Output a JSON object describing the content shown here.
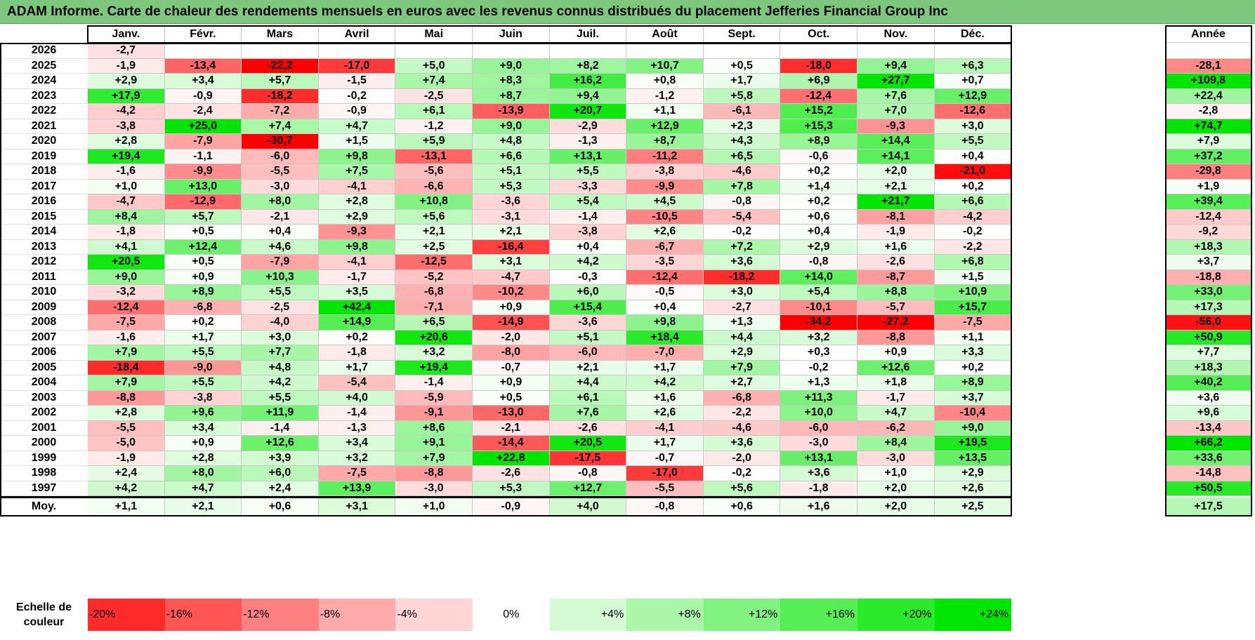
{
  "title": "ADAM Informe. Carte de chaleur des rendements mensuels en euros avec les revenus connus distribués du placement Jefferies Financial Group Inc",
  "chart_data": {
    "type": "heatmap",
    "title": "ADAM Informe. Carte de chaleur des rendements mensuels en euros avec les revenus connus distribués du placement Jefferies Financial Group Inc",
    "columns": [
      "Janv.",
      "Févr.",
      "Mars",
      "Avril",
      "Mai",
      "Juin",
      "Juil.",
      "Août",
      "Sept.",
      "Oct.",
      "Nov.",
      "Déc."
    ],
    "year_header": "Année",
    "rows": [
      {
        "year": "2026",
        "values": [
          "-2,7",
          "",
          "",
          "",
          "",
          "",
          "",
          "",
          "",
          "",
          "",
          ""
        ],
        "annual": ""
      },
      {
        "year": "2025",
        "values": [
          "-1,9",
          "-13,4",
          "-22,2",
          "-17,0",
          "+5,0",
          "+9,0",
          "+8,2",
          "+10,7",
          "+0,5",
          "-18,0",
          "+9,4",
          "+6,3"
        ],
        "annual": "-28,1"
      },
      {
        "year": "2024",
        "values": [
          "+2,9",
          "+3,4",
          "+5,7",
          "-1,5",
          "+7,4",
          "+8,3",
          "+16,2",
          "+0,8",
          "+1,7",
          "+6,9",
          "+27,7",
          "+0,7"
        ],
        "annual": "+109,8"
      },
      {
        "year": "2023",
        "values": [
          "+17,9",
          "-0,9",
          "-18,2",
          "-0,2",
          "-2,5",
          "+8,7",
          "+9,4",
          "-1,2",
          "+5,8",
          "-12,4",
          "+7,6",
          "+12,9"
        ],
        "annual": "+22,4"
      },
      {
        "year": "2022",
        "values": [
          "-4,2",
          "-2,4",
          "-7,2",
          "-0,9",
          "+6,1",
          "-13,9",
          "+20,7",
          "+1,1",
          "-6,1",
          "+15,2",
          "+7,0",
          "-12,6"
        ],
        "annual": "-2,8"
      },
      {
        "year": "2021",
        "values": [
          "-3,8",
          "+25,0",
          "+7,4",
          "+4,7",
          "-1,2",
          "+9,0",
          "-2,9",
          "+12,9",
          "+2,3",
          "+15,3",
          "-9,3",
          "+3,0"
        ],
        "annual": "+74,7"
      },
      {
        "year": "2020",
        "values": [
          "+2,8",
          "-7,9",
          "-30,7",
          "+1,5",
          "+5,9",
          "+4,8",
          "-1,3",
          "+8,7",
          "+4,3",
          "+8,9",
          "+14,4",
          "+5,5"
        ],
        "annual": "+7,9"
      },
      {
        "year": "2019",
        "values": [
          "+19,4",
          "-1,1",
          "-6,0",
          "+9,8",
          "-13,1",
          "+6,6",
          "+13,1",
          "-11,2",
          "+6,5",
          "-0,6",
          "+14,1",
          "+0,4"
        ],
        "annual": "+37,2"
      },
      {
        "year": "2018",
        "values": [
          "-1,6",
          "-9,9",
          "-5,5",
          "+7,5",
          "-5,6",
          "+5,1",
          "+5,5",
          "-3,8",
          "-4,6",
          "+0,2",
          "+2,0",
          "-21,0"
        ],
        "annual": "-29,8"
      },
      {
        "year": "2017",
        "values": [
          "+1,0",
          "+13,0",
          "-3,0",
          "-4,1",
          "-6,6",
          "+5,3",
          "-3,3",
          "-9,9",
          "+7,8",
          "+1,4",
          "+2,1",
          "+0,2"
        ],
        "annual": "+1,9"
      },
      {
        "year": "2016",
        "values": [
          "-4,7",
          "-12,9",
          "+8,0",
          "+2,8",
          "+10,8",
          "-3,6",
          "+5,4",
          "+4,5",
          "-0,8",
          "+0,2",
          "+21,7",
          "+6,6"
        ],
        "annual": "+39,4"
      },
      {
        "year": "2015",
        "values": [
          "+8,4",
          "+5,7",
          "-2,1",
          "+2,9",
          "+5,6",
          "-3,1",
          "-1,4",
          "-10,5",
          "-5,4",
          "+0,6",
          "-8,1",
          "-4,2"
        ],
        "annual": "-12,4"
      },
      {
        "year": "2014",
        "values": [
          "-1,8",
          "+0,5",
          "+0,4",
          "-9,3",
          "+2,1",
          "+2,1",
          "-3,8",
          "+2,6",
          "-0,2",
          "+0,4",
          "-1,9",
          "-0,2"
        ],
        "annual": "-9,2"
      },
      {
        "year": "2013",
        "values": [
          "+4,1",
          "+12,4",
          "+4,6",
          "+9,8",
          "+2,5",
          "-16,4",
          "+0,4",
          "-6,7",
          "+7,2",
          "+2,9",
          "+1,6",
          "-2,2"
        ],
        "annual": "+18,3"
      },
      {
        "year": "2012",
        "values": [
          "+20,5",
          "+0,5",
          "-7,9",
          "-4,1",
          "-12,5",
          "+3,1",
          "+4,2",
          "-3,5",
          "+3,6",
          "-0,8",
          "-2,6",
          "+6,8"
        ],
        "annual": "+3,7"
      },
      {
        "year": "2011",
        "values": [
          "+9,0",
          "+0,9",
          "+10,3",
          "-1,7",
          "-5,2",
          "-4,7",
          "-0,3",
          "-12,4",
          "-18,2",
          "+14,0",
          "-8,7",
          "+1,5"
        ],
        "annual": "-18,8"
      },
      {
        "year": "2010",
        "values": [
          "-3,2",
          "+8,9",
          "+5,5",
          "+3,5",
          "-6,8",
          "-10,2",
          "+6,0",
          "-0,5",
          "+3,0",
          "+5,4",
          "+8,8",
          "+10,9"
        ],
        "annual": "+33,0"
      },
      {
        "year": "2009",
        "values": [
          "-12,4",
          "-6,8",
          "-2,5",
          "+42,4",
          "-7,1",
          "+0,9",
          "+15,4",
          "+0,4",
          "-2,7",
          "-10,1",
          "-5,7",
          "+15,7"
        ],
        "annual": "+17,3"
      },
      {
        "year": "2008",
        "values": [
          "-7,5",
          "+0,2",
          "-4,0",
          "+14,9",
          "+6,5",
          "-14,9",
          "-3,6",
          "+9,8",
          "+1,3",
          "-34,2",
          "-27,2",
          "-7,5"
        ],
        "annual": "-56,0"
      },
      {
        "year": "2007",
        "values": [
          "-1,6",
          "+1,7",
          "+3,0",
          "+0,2",
          "+20,6",
          "-2,0",
          "+5,1",
          "+18,4",
          "+4,4",
          "+3,2",
          "-8,8",
          "+1,1"
        ],
        "annual": "+50,9"
      },
      {
        "year": "2006",
        "values": [
          "+7,9",
          "+5,5",
          "+7,7",
          "-1,8",
          "+3,2",
          "-8,0",
          "-6,0",
          "-7,0",
          "+2,9",
          "+0,3",
          "+0,9",
          "+3,3"
        ],
        "annual": "+7,7"
      },
      {
        "year": "2005",
        "values": [
          "-18,4",
          "-9,0",
          "+4,8",
          "+1,7",
          "+19,4",
          "-0,7",
          "+2,1",
          "+1,7",
          "+7,9",
          "-0,2",
          "+12,6",
          "+0,2"
        ],
        "annual": "+18,3"
      },
      {
        "year": "2004",
        "values": [
          "+7,9",
          "+5,5",
          "+4,2",
          "-5,4",
          "-1,4",
          "+0,9",
          "+4,4",
          "+4,2",
          "+2,7",
          "+1,3",
          "+1,8",
          "+8,9"
        ],
        "annual": "+40,2"
      },
      {
        "year": "2003",
        "values": [
          "-8,8",
          "-3,8",
          "+5,5",
          "+4,0",
          "-5,9",
          "+0,5",
          "+6,1",
          "+1,6",
          "-6,8",
          "+11,3",
          "-1,7",
          "+3,7"
        ],
        "annual": "+3,6"
      },
      {
        "year": "2002",
        "values": [
          "+2,8",
          "+9,6",
          "+11,9",
          "-1,4",
          "-9,1",
          "-13,0",
          "+7,6",
          "+2,6",
          "-2,2",
          "+10,0",
          "+4,7",
          "-10,4"
        ],
        "annual": "+9,6"
      },
      {
        "year": "2001",
        "values": [
          "-5,5",
          "+3,4",
          "-1,4",
          "-1,3",
          "+8,6",
          "-2,1",
          "-2,6",
          "-4,1",
          "-4,6",
          "-6,0",
          "-6,2",
          "+9,0"
        ],
        "annual": "-13,4"
      },
      {
        "year": "2000",
        "values": [
          "-5,0",
          "+0,9",
          "+12,6",
          "+3,4",
          "+9,1",
          "-14,4",
          "+20,5",
          "+1,7",
          "+3,6",
          "-3,0",
          "+8,4",
          "+19,5"
        ],
        "annual": "+66,2"
      },
      {
        "year": "1999",
        "values": [
          "-1,9",
          "+2,8",
          "+3,9",
          "+3,2",
          "+7,9",
          "+22,8",
          "-17,5",
          "-0,7",
          "-2,0",
          "+13,1",
          "-3,0",
          "+13,5"
        ],
        "annual": "+33,6"
      },
      {
        "year": "1998",
        "values": [
          "+2,4",
          "+8,0",
          "+6,0",
          "-7,5",
          "-8,8",
          "-2,6",
          "-0,8",
          "-17,0",
          "-0,2",
          "+3,6",
          "+1,0",
          "+2,9"
        ],
        "annual": "-14,8"
      },
      {
        "year": "1997",
        "values": [
          "+4,2",
          "+4,7",
          "+2,4",
          "+13,9",
          "-3,0",
          "+5,3",
          "+12,7",
          "-5,5",
          "+5,6",
          "-1,8",
          "+2,0",
          "+2,6"
        ],
        "annual": "+50,5"
      }
    ],
    "average": {
      "label": "Moy.",
      "values": [
        "+1,1",
        "+2,1",
        "+0,6",
        "+3,1",
        "+1,0",
        "-0,9",
        "+4,0",
        "-0,8",
        "+0,6",
        "+1,6",
        "+2,0",
        "+2,5"
      ],
      "annual": "+17,5"
    },
    "scale": {
      "label_line1": "Echelle de",
      "label_line2": "couleur",
      "steps": [
        "-20%",
        "-16%",
        "-12%",
        "-8%",
        "-4%",
        "0%",
        "+4%",
        "+8%",
        "+12%",
        "+16%",
        "+20%",
        "+24%"
      ]
    }
  }
}
